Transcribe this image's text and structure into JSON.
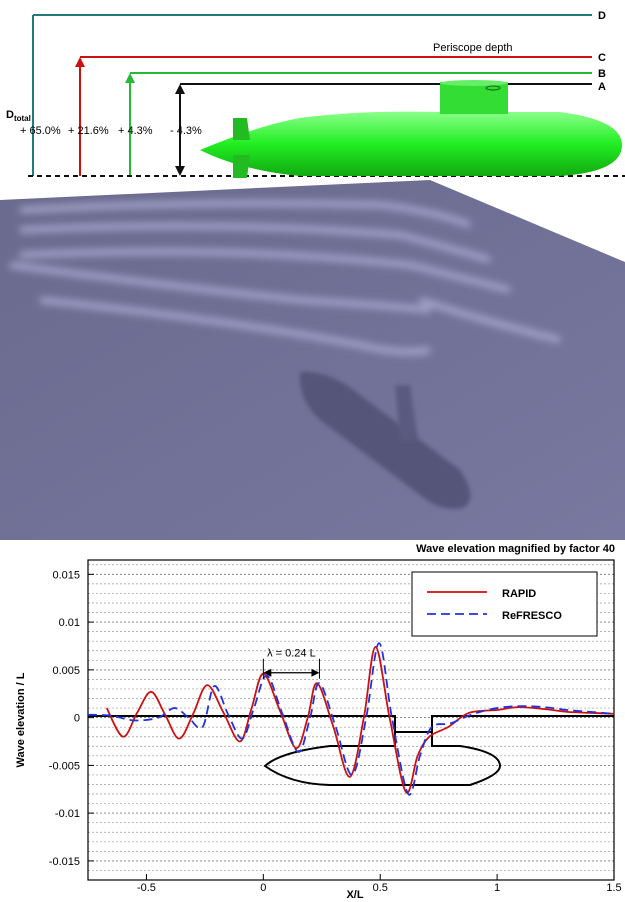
{
  "diagram": {
    "levels": [
      "D",
      "C",
      "B",
      "A"
    ],
    "periscope": "Periscope depth",
    "d_total": {
      "main": "D",
      "sub": "total"
    },
    "percents": [
      "+ 65.0%",
      "+ 21.6%",
      "+ 4.3%",
      "- 4.3%"
    ]
  },
  "chart_data": {
    "type": "line",
    "title": "Wave elevation magnified by factor 40",
    "xlabel": "X/L",
    "ylabel": "Wave elevation / L",
    "annotation": "λ = 0.24 L",
    "xlim": [
      -0.75,
      1.5
    ],
    "ylim": [
      -0.017,
      0.0165
    ],
    "xticks": [
      -0.5,
      0,
      0.5,
      1,
      1.5
    ],
    "yticks": [
      -0.015,
      -0.01,
      -0.005,
      0,
      0.005,
      0.01,
      0.015
    ],
    "grid": true,
    "minor_grid": true,
    "legend": "upper right",
    "series": [
      {
        "name": "RAPID",
        "color": "#cc1111",
        "dash": false,
        "x": [
          -0.67,
          -0.6,
          -0.54,
          -0.48,
          -0.42,
          -0.36,
          -0.3,
          -0.24,
          -0.17,
          -0.1,
          -0.05,
          0.0,
          0.07,
          0.14,
          0.19,
          0.23,
          0.3,
          0.37,
          0.43,
          0.48,
          0.54,
          0.61,
          0.66,
          0.71,
          0.79,
          0.88,
          1.0,
          1.09,
          1.2,
          1.3,
          1.4,
          1.5
        ],
        "values": [
          0.001,
          -0.002,
          0.0005,
          0.0027,
          0.0003,
          -0.0022,
          0.0004,
          0.0034,
          0.0005,
          -0.0025,
          0.001,
          0.0046,
          0.0008,
          -0.0032,
          0.0,
          0.0036,
          -0.001,
          -0.0062,
          0.0,
          0.0074,
          0.0,
          -0.0078,
          -0.004,
          -0.002,
          -0.001,
          0.0005,
          0.0008,
          0.0011,
          0.0009,
          0.0006,
          0.0005,
          0.0004
        ]
      },
      {
        "name": "ReFRESCO",
        "color": "#2233dd",
        "dash": true,
        "x": [
          -0.75,
          -0.65,
          -0.55,
          -0.45,
          -0.38,
          -0.32,
          -0.26,
          -0.21,
          -0.15,
          -0.09,
          -0.04,
          0.015,
          0.08,
          0.15,
          0.2,
          0.24,
          0.31,
          0.38,
          0.44,
          0.495,
          0.55,
          0.62,
          0.67,
          0.72,
          0.8,
          0.9,
          1.0,
          1.1,
          1.2,
          1.3,
          1.4,
          1.5
        ],
        "values": [
          0.0003,
          0.0002,
          -0.0003,
          0.0,
          0.001,
          0.0,
          -0.001,
          0.0033,
          0.0003,
          -0.0022,
          0.001,
          0.0044,
          0.0005,
          -0.0036,
          0.0,
          0.0036,
          -0.001,
          -0.006,
          0.0,
          0.0078,
          0.0,
          -0.008,
          -0.004,
          -0.001,
          -0.0006,
          0.0004,
          0.001,
          0.0012,
          0.0011,
          0.0008,
          0.0006,
          0.0004
        ]
      }
    ]
  }
}
